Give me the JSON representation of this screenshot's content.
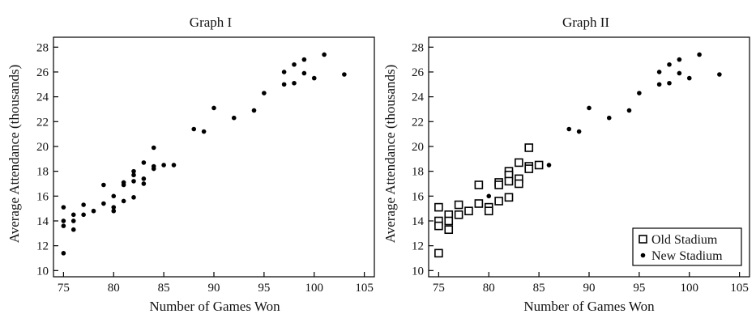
{
  "chart_data": [
    {
      "type": "scatter",
      "title": "Graph I",
      "xlabel": "Number of Games Won",
      "ylabel": "Average Attendance (thousands)",
      "xlim": [
        74,
        106
      ],
      "ylim": [
        9.5,
        28.8
      ],
      "xticks": [
        "75",
        "80",
        "85",
        "90",
        "95",
        "100",
        "105"
      ],
      "yticks": [
        "10",
        "12",
        "14",
        "16",
        "18",
        "20",
        "22",
        "24",
        "26",
        "28"
      ],
      "grid": false,
      "series": [
        {
          "marker": "dot",
          "points": [
            [
              75,
              15.1
            ],
            [
              75,
              14.0
            ],
            [
              75,
              13.6
            ],
            [
              75,
              11.4
            ],
            [
              76,
              14.5
            ],
            [
              76,
              14.0
            ],
            [
              76,
              13.3
            ],
            [
              77,
              15.3
            ],
            [
              77,
              14.5
            ],
            [
              78,
              14.8
            ],
            [
              79,
              16.9
            ],
            [
              79,
              15.4
            ],
            [
              80,
              16.0
            ],
            [
              80,
              15.1
            ],
            [
              80,
              14.8
            ],
            [
              81,
              17.1
            ],
            [
              81,
              16.9
            ],
            [
              81,
              15.6
            ],
            [
              82,
              18.0
            ],
            [
              82,
              17.7
            ],
            [
              82,
              17.2
            ],
            [
              82,
              15.9
            ],
            [
              83,
              18.7
            ],
            [
              83,
              17.4
            ],
            [
              83,
              17.0
            ],
            [
              84,
              19.9
            ],
            [
              84,
              18.4
            ],
            [
              84,
              18.2
            ],
            [
              85,
              18.5
            ],
            [
              86,
              18.5
            ],
            [
              88,
              21.4
            ],
            [
              89,
              21.2
            ],
            [
              90,
              23.1
            ],
            [
              92,
              22.3
            ],
            [
              94,
              22.9
            ],
            [
              95,
              24.3
            ],
            [
              97,
              26.0
            ],
            [
              97,
              25.0
            ],
            [
              98,
              26.6
            ],
            [
              98,
              25.1
            ],
            [
              99,
              27.0
            ],
            [
              99,
              25.9
            ],
            [
              100,
              25.5
            ],
            [
              101,
              27.4
            ],
            [
              103,
              25.8
            ]
          ]
        }
      ]
    },
    {
      "type": "scatter",
      "title": "Graph II",
      "xlabel": "Number of Games Won",
      "ylabel": "Average Attendance (thousands)",
      "xlim": [
        74,
        106
      ],
      "ylim": [
        9.5,
        28.8
      ],
      "xticks": [
        "75",
        "80",
        "85",
        "90",
        "95",
        "100",
        "105"
      ],
      "yticks": [
        "10",
        "12",
        "14",
        "16",
        "18",
        "20",
        "22",
        "24",
        "26",
        "28"
      ],
      "grid": false,
      "legend_position": "bottom-right",
      "series": [
        {
          "name": "Old Stadium",
          "marker": "square",
          "points": [
            [
              75,
              15.1
            ],
            [
              75,
              14.0
            ],
            [
              75,
              13.6
            ],
            [
              75,
              11.4
            ],
            [
              76,
              14.5
            ],
            [
              76,
              14.0
            ],
            [
              76,
              13.3
            ],
            [
              77,
              15.3
            ],
            [
              77,
              14.5
            ],
            [
              78,
              14.8
            ],
            [
              79,
              16.9
            ],
            [
              79,
              15.4
            ],
            [
              80,
              15.1
            ],
            [
              80,
              14.8
            ],
            [
              81,
              17.1
            ],
            [
              81,
              16.9
            ],
            [
              81,
              15.6
            ],
            [
              82,
              18.0
            ],
            [
              82,
              17.7
            ],
            [
              82,
              17.2
            ],
            [
              82,
              15.9
            ],
            [
              83,
              18.7
            ],
            [
              83,
              17.4
            ],
            [
              83,
              17.0
            ],
            [
              84,
              19.9
            ],
            [
              84,
              18.4
            ],
            [
              84,
              18.2
            ],
            [
              85,
              18.5
            ]
          ]
        },
        {
          "name": "New Stadium",
          "marker": "dot",
          "points": [
            [
              80,
              16.0
            ],
            [
              86,
              18.5
            ],
            [
              88,
              21.4
            ],
            [
              89,
              21.2
            ],
            [
              90,
              23.1
            ],
            [
              92,
              22.3
            ],
            [
              94,
              22.9
            ],
            [
              95,
              24.3
            ],
            [
              97,
              26.0
            ],
            [
              97,
              25.0
            ],
            [
              98,
              26.6
            ],
            [
              98,
              25.1
            ],
            [
              99,
              27.0
            ],
            [
              99,
              25.9
            ],
            [
              100,
              25.5
            ],
            [
              101,
              27.4
            ],
            [
              103,
              25.8
            ]
          ]
        }
      ]
    }
  ]
}
